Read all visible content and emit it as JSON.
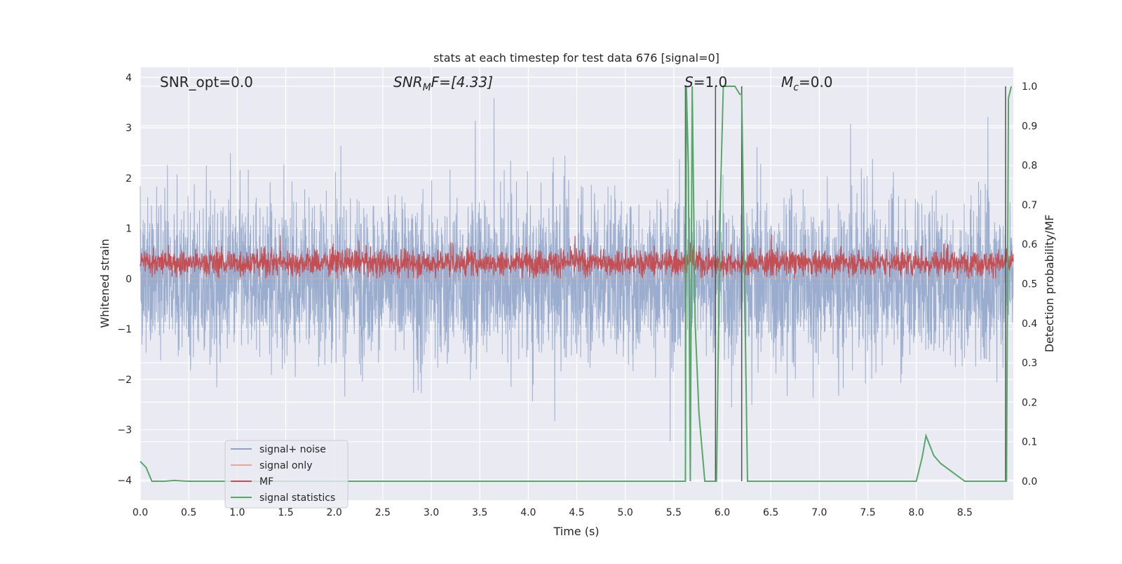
{
  "chart_data": {
    "type": "line",
    "title": "stats at each timestep for test data 676 [signal=0]",
    "xlabel": "Time (s)",
    "ylabel_left": "Whitened strain",
    "ylabel_right": "Detection probability/MF",
    "xlim": [
      0.0,
      9.0
    ],
    "ylim_left": [
      -4.4,
      4.2
    ],
    "ylim_right": [
      -0.048,
      1.048
    ],
    "x_ticks": [
      "0.0",
      "0.5",
      "1.0",
      "1.5",
      "2.0",
      "2.5",
      "3.0",
      "3.5",
      "4.0",
      "4.5",
      "5.0",
      "5.5",
      "6.0",
      "6.5",
      "7.0",
      "7.5",
      "8.0",
      "8.5"
    ],
    "y_ticks_left": [
      "4",
      "3",
      "2",
      "1",
      "0",
      "−1",
      "−2",
      "−3",
      "−4"
    ],
    "y_ticks_right": [
      "1.0",
      "0.9",
      "0.8",
      "0.7",
      "0.6",
      "0.5",
      "0.4",
      "0.3",
      "0.2",
      "0.1",
      "0.0"
    ],
    "grid": true,
    "legend_position": "lower-left",
    "annotations": {
      "snr_opt": "SNR_opt=0.0",
      "snr_mf_base": "SNR",
      "snr_mf_sub": "M",
      "snr_mf_rest": "F=[4.33]",
      "s_label": "S",
      "s_value": "=1.0",
      "mc_base": "M",
      "mc_sub": "c",
      "mc_value": "=0.0"
    },
    "series": [
      {
        "name": "signal+ noise",
        "color": "#8da2c8",
        "axis": "left",
        "description_values": "noise band, approx. range [-3.7, 3.6] around 0, sampled densely",
        "envelope_upper_typical": 2.0,
        "envelope_lower_typical": -2.0
      },
      {
        "name": "signal only",
        "color": "#e8a88c",
        "axis": "left",
        "values_constant": 0.0
      },
      {
        "name": "MF",
        "color": "#c44e52",
        "axis": "left",
        "typical_range": [
          0.0,
          0.8
        ]
      },
      {
        "name": "signal statistics",
        "color": "#55a868",
        "axis": "right",
        "x": [
          0.0,
          0.06,
          0.12,
          0.25,
          0.35,
          0.5,
          1.0,
          2.0,
          3.0,
          4.0,
          5.0,
          5.5,
          5.62,
          5.63,
          5.65,
          5.67,
          5.69,
          5.72,
          5.76,
          5.82,
          5.94,
          5.98,
          6.01,
          6.07,
          6.13,
          6.18,
          6.2,
          6.26,
          6.5,
          7.0,
          7.5,
          8.0,
          8.06,
          8.1,
          8.18,
          8.25,
          8.5,
          8.93,
          8.95,
          8.98
        ],
        "y": [
          0.05,
          0.035,
          0.0,
          0.0,
          0.002,
          0.0,
          0.0,
          0.0,
          0.0,
          0.0,
          0.0,
          0.0,
          0.0,
          1.0,
          0.8,
          0.0,
          1.0,
          0.4,
          0.17,
          0.0,
          0.0,
          0.7,
          1.0,
          1.0,
          1.0,
          0.98,
          0.98,
          0.0,
          0.0,
          0.0,
          0.0,
          0.0,
          0.06,
          0.115,
          0.065,
          0.045,
          0.0,
          0.0,
          0.97,
          1.0
        ]
      }
    ],
    "vertical_markers": [
      {
        "color": "#555555",
        "x": [
          5.62,
          5.93,
          6.2,
          8.92
        ]
      }
    ]
  },
  "legend": [
    {
      "label": "signal+ noise",
      "color": "#8da2c8"
    },
    {
      "label": "signal only",
      "color": "#e8a88c"
    },
    {
      "label": "MF",
      "color": "#c44e52"
    },
    {
      "label": "signal statistics",
      "color": "#55a868"
    }
  ]
}
